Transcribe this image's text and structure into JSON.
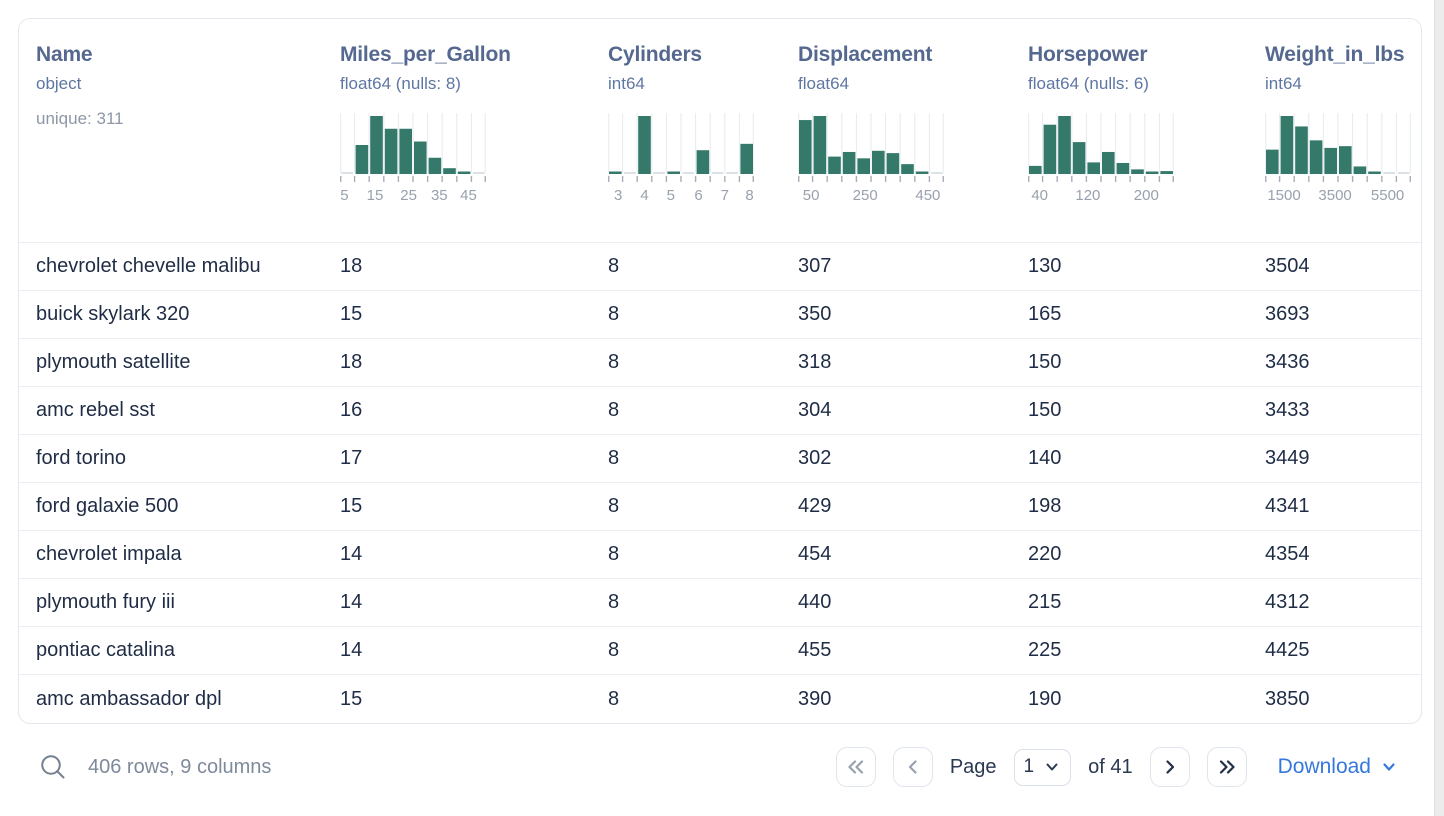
{
  "colors": {
    "histogram_green": "#34796a",
    "link_blue": "#3478de",
    "header_text": "#55688f",
    "row_text": "#1f2c45"
  },
  "icons": {
    "search": "magnifier-glyph",
    "first_page": "double-chevron-left",
    "prev_page": "chevron-left",
    "next_page": "chevron-right",
    "last_page": "double-chevron-right",
    "page_dropdown": "chevron-down",
    "download_dropdown": "chevron-down"
  },
  "table": {
    "columns": [
      {
        "name": "Name",
        "type": "object",
        "extra": "unique: 311"
      },
      {
        "name": "Miles_per_Gallon",
        "type": "float64 (nulls: 8)",
        "histogram": {
          "type": "bar",
          "bars": [
            0,
            0.5,
            1,
            0.78,
            0.78,
            0.56,
            0.28,
            0.1,
            0.04,
            0
          ],
          "tick_labels": [
            "5",
            "15",
            "25",
            "35",
            "45"
          ],
          "tick_label_pos": [
            0.03,
            0.24,
            0.47,
            0.68,
            0.88
          ]
        }
      },
      {
        "name": "Cylinders",
        "type": "int64",
        "histogram": {
          "type": "bar",
          "bars": [
            0.03,
            0,
            1,
            0,
            0.02,
            0,
            0.41,
            0,
            0,
            0.52
          ],
          "tick_labels": [
            "3",
            "4",
            "5",
            "6",
            "7",
            "8"
          ],
          "tick_label_pos": [
            0.07,
            0.25,
            0.43,
            0.62,
            0.8,
            0.97
          ]
        }
      },
      {
        "name": "Displacement",
        "type": "float64",
        "histogram": {
          "type": "bar",
          "bars": [
            0.93,
            1,
            0.3,
            0.38,
            0.27,
            0.4,
            0.36,
            0.17,
            0.04,
            0
          ],
          "tick_labels": [
            "50",
            "250",
            "450"
          ],
          "tick_label_pos": [
            0.09,
            0.46,
            0.89
          ]
        }
      },
      {
        "name": "Horsepower",
        "type": "float64 (nulls: 6)",
        "histogram": {
          "type": "bar",
          "bars": [
            0.14,
            0.85,
            1,
            0.55,
            0.2,
            0.38,
            0.19,
            0.08,
            0.04,
            0.05
          ],
          "tick_labels": [
            "40",
            "120",
            "200"
          ],
          "tick_label_pos": [
            0.08,
            0.41,
            0.81
          ]
        }
      },
      {
        "name": "Weight_in_lbs",
        "type": "int64",
        "histogram": {
          "type": "bar",
          "bars": [
            0.42,
            1,
            0.82,
            0.58,
            0.45,
            0.48,
            0.13,
            0.02,
            0,
            0
          ],
          "tick_labels": [
            "1500",
            "3500",
            "5500"
          ],
          "tick_label_pos": [
            0.13,
            0.48,
            0.84
          ]
        }
      }
    ],
    "rows": [
      [
        "chevrolet chevelle malibu",
        "18",
        "8",
        "307",
        "130",
        "3504"
      ],
      [
        "buick skylark 320",
        "15",
        "8",
        "350",
        "165",
        "3693"
      ],
      [
        "plymouth satellite",
        "18",
        "8",
        "318",
        "150",
        "3436"
      ],
      [
        "amc rebel sst",
        "16",
        "8",
        "304",
        "150",
        "3433"
      ],
      [
        "ford torino",
        "17",
        "8",
        "302",
        "140",
        "3449"
      ],
      [
        "ford galaxie 500",
        "15",
        "8",
        "429",
        "198",
        "4341"
      ],
      [
        "chevrolet impala",
        "14",
        "8",
        "454",
        "220",
        "4354"
      ],
      [
        "plymouth fury iii",
        "14",
        "8",
        "440",
        "215",
        "4312"
      ],
      [
        "pontiac catalina",
        "14",
        "8",
        "455",
        "225",
        "4425"
      ],
      [
        "amc ambassador dpl",
        "15",
        "8",
        "390",
        "190",
        "3850"
      ]
    ]
  },
  "footer": {
    "summary": "406 rows, 9 columns",
    "pagination": {
      "page_label": "Page",
      "page_value": "1",
      "of_label": "of 41"
    },
    "download_label": "Download"
  }
}
